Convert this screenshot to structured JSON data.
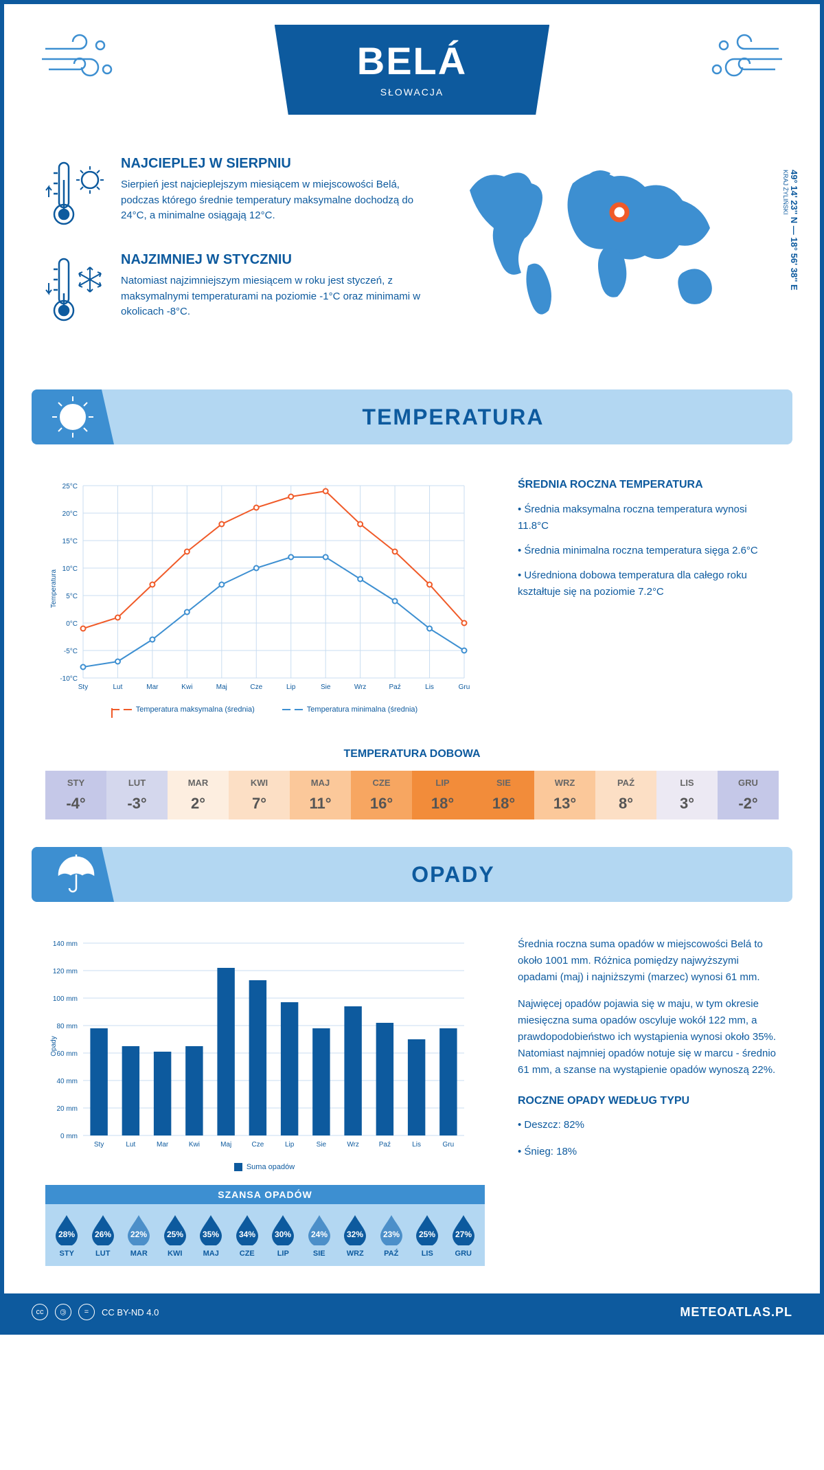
{
  "header": {
    "city": "BELÁ",
    "country": "SŁOWACJA"
  },
  "coords": {
    "lat": "49° 14' 23'' N",
    "lon": "18° 56' 38'' E",
    "region": "KRAJ ŻYLIŃSKI"
  },
  "warmest": {
    "title": "NAJCIEPLEJ W SIERPNIU",
    "text": "Sierpień jest najcieplejszym miesiącem w miejscowości Belá, podczas którego średnie temperatury maksymalne dochodzą do 24°C, a minimalne osiągają 12°C."
  },
  "coldest": {
    "title": "NAJZIMNIEJ W STYCZNIU",
    "text": "Natomiast najzimniejszym miesiącem w roku jest styczeń, z maksymalnymi temperaturami na poziomie -1°C oraz minimami w okolicach -8°C."
  },
  "section_temp": "TEMPERATURA",
  "section_precip": "OPADY",
  "temp_chart": {
    "months": [
      "Sty",
      "Lut",
      "Mar",
      "Kwi",
      "Maj",
      "Cze",
      "Lip",
      "Sie",
      "Wrz",
      "Paź",
      "Lis",
      "Gru"
    ],
    "max": [
      -1,
      1,
      7,
      13,
      18,
      21,
      23,
      24,
      18,
      13,
      7,
      0
    ],
    "min": [
      -8,
      -7,
      -3,
      2,
      7,
      10,
      12,
      12,
      8,
      4,
      -1,
      -5
    ],
    "ylabel": "Temperatura",
    "ymin": -10,
    "ymax": 25,
    "ystep": 5,
    "max_color": "#f05a28",
    "min_color": "#3d8fd1",
    "grid_color": "#c9ddf0",
    "bg": "#ffffff",
    "legend_max": "Temperatura maksymalna (średnia)",
    "legend_min": "Temperatura minimalna (średnia)"
  },
  "temp_info": {
    "title": "ŚREDNIA ROCZNA TEMPERATURA",
    "b1": "• Średnia maksymalna roczna temperatura wynosi 11.8°C",
    "b2": "• Średnia minimalna roczna temperatura sięga 2.6°C",
    "b3": "• Uśredniona dobowa temperatura dla całego roku kształtuje się na poziomie 7.2°C"
  },
  "daily": {
    "title": "TEMPERATURA DOBOWA",
    "months": [
      "STY",
      "LUT",
      "MAR",
      "KWI",
      "MAJ",
      "CZE",
      "LIP",
      "SIE",
      "WRZ",
      "PAŹ",
      "LIS",
      "GRU"
    ],
    "values": [
      "-4°",
      "-3°",
      "2°",
      "7°",
      "11°",
      "16°",
      "18°",
      "18°",
      "13°",
      "8°",
      "3°",
      "-2°"
    ],
    "colors": [
      "#c5c8e8",
      "#d4d7ed",
      "#fdeee0",
      "#fcdfc5",
      "#fbc89a",
      "#f7a661",
      "#f28c3a",
      "#f28c3a",
      "#fbc89a",
      "#fcdfc5",
      "#ece9f3",
      "#c5c8e8"
    ]
  },
  "precip_chart": {
    "months": [
      "Sty",
      "Lut",
      "Mar",
      "Kwi",
      "Maj",
      "Cze",
      "Lip",
      "Sie",
      "Wrz",
      "Paź",
      "Lis",
      "Gru"
    ],
    "values": [
      78,
      65,
      61,
      65,
      122,
      113,
      97,
      78,
      94,
      82,
      70,
      78
    ],
    "ylabel": "Opady",
    "ymin": 0,
    "ymax": 140,
    "ystep": 20,
    "bar_color": "#0d5a9e",
    "grid_color": "#c9ddf0",
    "legend": "Suma opadów"
  },
  "precip_info": {
    "p1": "Średnia roczna suma opadów w miejscowości Belá to około 1001 mm. Różnica pomiędzy najwyższymi opadami (maj) i najniższymi (marzec) wynosi 61 mm.",
    "p2": "Najwięcej opadów pojawia się w maju, w tym okresie miesięczna suma opadów oscyluje wokół 122 mm, a prawdopodobieństwo ich wystąpienia wynosi około 35%. Natomiast najmniej opadów notuje się w marcu - średnio 61 mm, a szanse na wystąpienie opadów wynoszą 22%.",
    "type_title": "ROCZNE OPADY WEDŁUG TYPU",
    "rain": "• Deszcz: 82%",
    "snow": "• Śnieg: 18%"
  },
  "chance": {
    "title": "SZANSA OPADÓW",
    "months": [
      "STY",
      "LUT",
      "MAR",
      "KWI",
      "MAJ",
      "CZE",
      "LIP",
      "SIE",
      "WRZ",
      "PAŹ",
      "LIS",
      "GRU"
    ],
    "values": [
      "28%",
      "26%",
      "22%",
      "25%",
      "35%",
      "34%",
      "30%",
      "24%",
      "32%",
      "23%",
      "25%",
      "27%"
    ],
    "colors": [
      "#0d5a9e",
      "#0d5a9e",
      "#4c8fc9",
      "#0d5a9e",
      "#0d5a9e",
      "#0d5a9e",
      "#0d5a9e",
      "#4c8fc9",
      "#0d5a9e",
      "#4c8fc9",
      "#0d5a9e",
      "#0d5a9e"
    ]
  },
  "footer": {
    "license": "CC BY-ND 4.0",
    "site": "METEOATLAS.PL"
  }
}
